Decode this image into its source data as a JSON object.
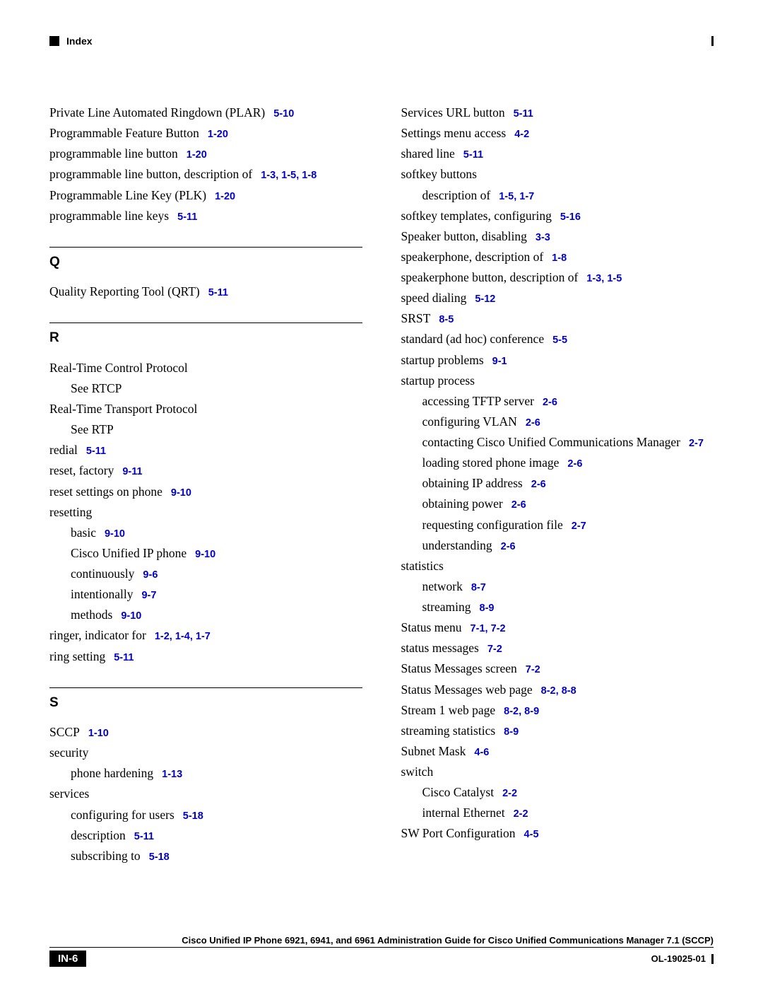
{
  "header": {
    "label": "Index"
  },
  "colors": {
    "link": "#0000cc",
    "text": "#000000",
    "background": "#ffffff"
  },
  "typography": {
    "body_family": "Times New Roman",
    "body_size_pt": 13,
    "ref_family": "Arial",
    "ref_size_pt": 11,
    "ref_weight": "bold",
    "section_letter_family": "Arial",
    "section_letter_size_pt": 14,
    "section_letter_weight": "900"
  },
  "left_column": [
    {
      "type": "entry",
      "indent": 0,
      "text": "Private Line Automated Ringdown (PLAR)",
      "refs": [
        "5-10"
      ]
    },
    {
      "type": "entry",
      "indent": 0,
      "text": "Programmable Feature Button",
      "refs": [
        "1-20"
      ]
    },
    {
      "type": "entry",
      "indent": 0,
      "text": "programmable line button",
      "refs": [
        "1-20"
      ]
    },
    {
      "type": "entry",
      "indent": 0,
      "text": "programmable line button, description of",
      "refs": [
        "1-3",
        "1-5",
        "1-8"
      ]
    },
    {
      "type": "entry",
      "indent": 0,
      "text": "Programmable Line Key (PLK)",
      "refs": [
        "1-20"
      ]
    },
    {
      "type": "entry",
      "indent": 0,
      "text": "programmable line keys",
      "refs": [
        "5-11"
      ]
    },
    {
      "type": "section",
      "letter": "Q"
    },
    {
      "type": "entry",
      "indent": 0,
      "text": "Quality Reporting Tool (QRT)",
      "refs": [
        "5-11"
      ]
    },
    {
      "type": "section",
      "letter": "R"
    },
    {
      "type": "entry",
      "indent": 0,
      "text": "Real-Time Control Protocol",
      "refs": []
    },
    {
      "type": "entry",
      "indent": 1,
      "text": "See RTCP",
      "refs": []
    },
    {
      "type": "entry",
      "indent": 0,
      "text": "Real-Time Transport Protocol",
      "refs": []
    },
    {
      "type": "entry",
      "indent": 1,
      "text": "See RTP",
      "refs": []
    },
    {
      "type": "entry",
      "indent": 0,
      "text": "redial",
      "refs": [
        "5-11"
      ]
    },
    {
      "type": "entry",
      "indent": 0,
      "text": "reset, factory",
      "refs": [
        "9-11"
      ]
    },
    {
      "type": "entry",
      "indent": 0,
      "text": "reset settings on phone",
      "refs": [
        "9-10"
      ]
    },
    {
      "type": "entry",
      "indent": 0,
      "text": "resetting",
      "refs": []
    },
    {
      "type": "entry",
      "indent": 1,
      "text": "basic",
      "refs": [
        "9-10"
      ]
    },
    {
      "type": "entry",
      "indent": 1,
      "text": "Cisco Unified IP phone",
      "refs": [
        "9-10"
      ]
    },
    {
      "type": "entry",
      "indent": 1,
      "text": "continuously",
      "refs": [
        "9-6"
      ]
    },
    {
      "type": "entry",
      "indent": 1,
      "text": "intentionally",
      "refs": [
        "9-7"
      ]
    },
    {
      "type": "entry",
      "indent": 1,
      "text": "methods",
      "refs": [
        "9-10"
      ]
    },
    {
      "type": "entry",
      "indent": 0,
      "text": "ringer, indicator for",
      "refs": [
        "1-2",
        "1-4",
        "1-7"
      ]
    },
    {
      "type": "entry",
      "indent": 0,
      "text": "ring setting",
      "refs": [
        "5-11"
      ]
    },
    {
      "type": "section",
      "letter": "S"
    },
    {
      "type": "entry",
      "indent": 0,
      "text": "SCCP",
      "refs": [
        "1-10"
      ]
    },
    {
      "type": "entry",
      "indent": 0,
      "text": "security",
      "refs": []
    },
    {
      "type": "entry",
      "indent": 1,
      "text": "phone hardening",
      "refs": [
        "1-13"
      ]
    },
    {
      "type": "entry",
      "indent": 0,
      "text": "services",
      "refs": []
    },
    {
      "type": "entry",
      "indent": 1,
      "text": "configuring for users",
      "refs": [
        "5-18"
      ]
    },
    {
      "type": "entry",
      "indent": 1,
      "text": "description",
      "refs": [
        "5-11"
      ]
    },
    {
      "type": "entry",
      "indent": 1,
      "text": "subscribing to",
      "refs": [
        "5-18"
      ]
    }
  ],
  "right_column": [
    {
      "type": "entry",
      "indent": 0,
      "text": "Services URL button",
      "refs": [
        "5-11"
      ]
    },
    {
      "type": "entry",
      "indent": 0,
      "text": "Settings menu access",
      "refs": [
        "4-2"
      ]
    },
    {
      "type": "entry",
      "indent": 0,
      "text": "shared line",
      "refs": [
        "5-11"
      ]
    },
    {
      "type": "entry",
      "indent": 0,
      "text": "softkey buttons",
      "refs": []
    },
    {
      "type": "entry",
      "indent": 1,
      "text": "description of",
      "refs": [
        "1-5",
        "1-7"
      ]
    },
    {
      "type": "entry",
      "indent": 0,
      "text": "softkey templates, configuring",
      "refs": [
        "5-16"
      ]
    },
    {
      "type": "entry",
      "indent": 0,
      "text": "Speaker button, disabling",
      "refs": [
        "3-3"
      ]
    },
    {
      "type": "entry",
      "indent": 0,
      "text": "speakerphone, description of",
      "refs": [
        "1-8"
      ]
    },
    {
      "type": "entry",
      "indent": 0,
      "text": "speakerphone button, description of",
      "refs": [
        "1-3",
        "1-5"
      ]
    },
    {
      "type": "entry",
      "indent": 0,
      "text": "speed dialing",
      "refs": [
        "5-12"
      ]
    },
    {
      "type": "entry",
      "indent": 0,
      "text": "SRST",
      "refs": [
        "8-5"
      ]
    },
    {
      "type": "entry",
      "indent": 0,
      "text": "standard (ad hoc) conference",
      "refs": [
        "5-5"
      ]
    },
    {
      "type": "entry",
      "indent": 0,
      "text": "startup problems",
      "refs": [
        "9-1"
      ]
    },
    {
      "type": "entry",
      "indent": 0,
      "text": "startup process",
      "refs": []
    },
    {
      "type": "entry",
      "indent": 1,
      "text": "accessing TFTP server",
      "refs": [
        "2-6"
      ]
    },
    {
      "type": "entry",
      "indent": 1,
      "text": "configuring VLAN",
      "refs": [
        "2-6"
      ]
    },
    {
      "type": "entry",
      "indent": 1,
      "text": "contacting Cisco Unified Communications Manager",
      "refs": [
        "2-7"
      ]
    },
    {
      "type": "entry",
      "indent": 1,
      "text": "loading stored phone image",
      "refs": [
        "2-6"
      ]
    },
    {
      "type": "entry",
      "indent": 1,
      "text": "obtaining IP address",
      "refs": [
        "2-6"
      ]
    },
    {
      "type": "entry",
      "indent": 1,
      "text": "obtaining power",
      "refs": [
        "2-6"
      ]
    },
    {
      "type": "entry",
      "indent": 1,
      "text": "requesting configuration file",
      "refs": [
        "2-7"
      ]
    },
    {
      "type": "entry",
      "indent": 1,
      "text": "understanding",
      "refs": [
        "2-6"
      ]
    },
    {
      "type": "entry",
      "indent": 0,
      "text": "statistics",
      "refs": []
    },
    {
      "type": "entry",
      "indent": 1,
      "text": "network",
      "refs": [
        "8-7"
      ]
    },
    {
      "type": "entry",
      "indent": 1,
      "text": "streaming",
      "refs": [
        "8-9"
      ]
    },
    {
      "type": "entry",
      "indent": 0,
      "text": "Status menu",
      "refs": [
        "7-1",
        "7-2"
      ]
    },
    {
      "type": "entry",
      "indent": 0,
      "text": "status messages",
      "refs": [
        "7-2"
      ]
    },
    {
      "type": "entry",
      "indent": 0,
      "text": "Status Messages screen",
      "refs": [
        "7-2"
      ]
    },
    {
      "type": "entry",
      "indent": 0,
      "text": "Status Messages web page",
      "refs": [
        "8-2",
        "8-8"
      ]
    },
    {
      "type": "entry",
      "indent": 0,
      "text": "Stream 1 web page",
      "refs": [
        "8-2",
        "8-9"
      ]
    },
    {
      "type": "entry",
      "indent": 0,
      "text": "streaming statistics",
      "refs": [
        "8-9"
      ]
    },
    {
      "type": "entry",
      "indent": 0,
      "text": "Subnet Mask",
      "refs": [
        "4-6"
      ]
    },
    {
      "type": "entry",
      "indent": 0,
      "text": "switch",
      "refs": []
    },
    {
      "type": "entry",
      "indent": 1,
      "text": "Cisco Catalyst",
      "refs": [
        "2-2"
      ]
    },
    {
      "type": "entry",
      "indent": 1,
      "text": "internal Ethernet",
      "refs": [
        "2-2"
      ]
    },
    {
      "type": "entry",
      "indent": 0,
      "text": "SW Port Configuration",
      "refs": [
        "4-5"
      ]
    }
  ],
  "footer": {
    "title": "Cisco Unified IP Phone 6921, 6941, and 6961 Administration Guide for Cisco Unified Communications Manager 7.1 (SCCP)",
    "page": "IN-6",
    "doc_id": "OL-19025-01"
  }
}
